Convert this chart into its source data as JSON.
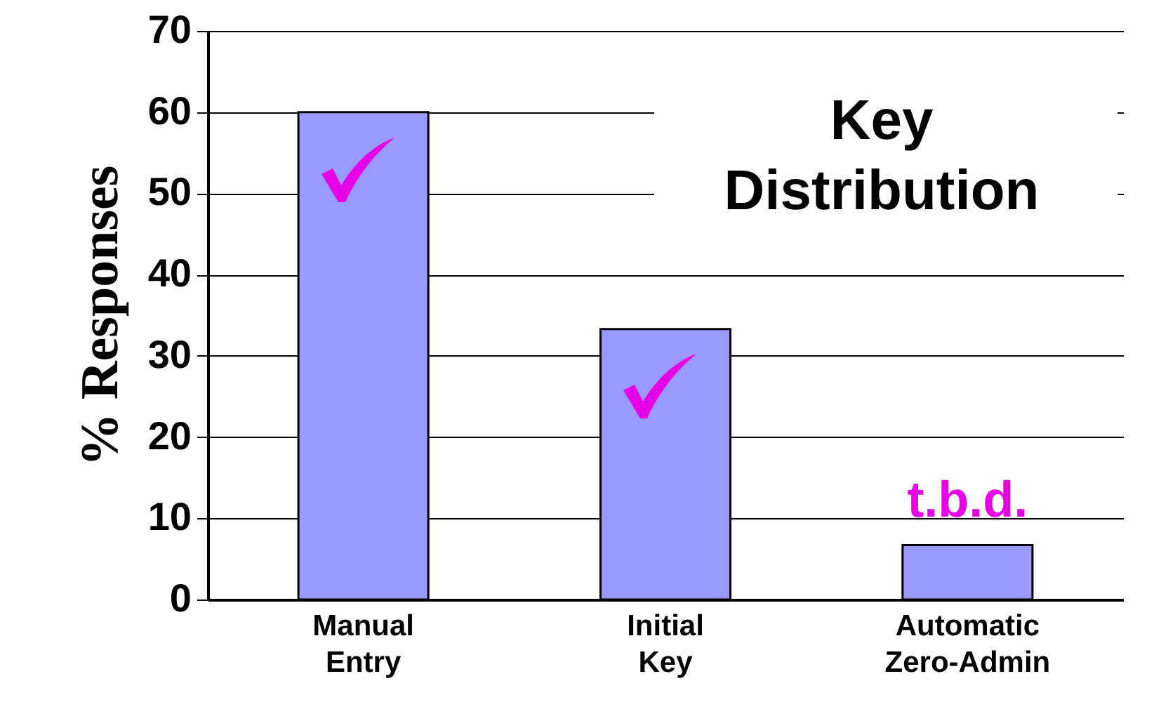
{
  "chart_data": {
    "type": "bar",
    "title": "Key Distribution",
    "ylabel": "% Responses",
    "categories": [
      "Manual Entry",
      "Initial Key",
      "Automatic Zero-Admin"
    ],
    "values": [
      60,
      33.3,
      6.7
    ],
    "color": "#9999ff",
    "ylim": [
      0,
      70
    ],
    "yticks": [
      0,
      10,
      20,
      30,
      40,
      50,
      60,
      70
    ],
    "grid": "y",
    "annotations": [
      "t.b.d."
    ]
  }
}
